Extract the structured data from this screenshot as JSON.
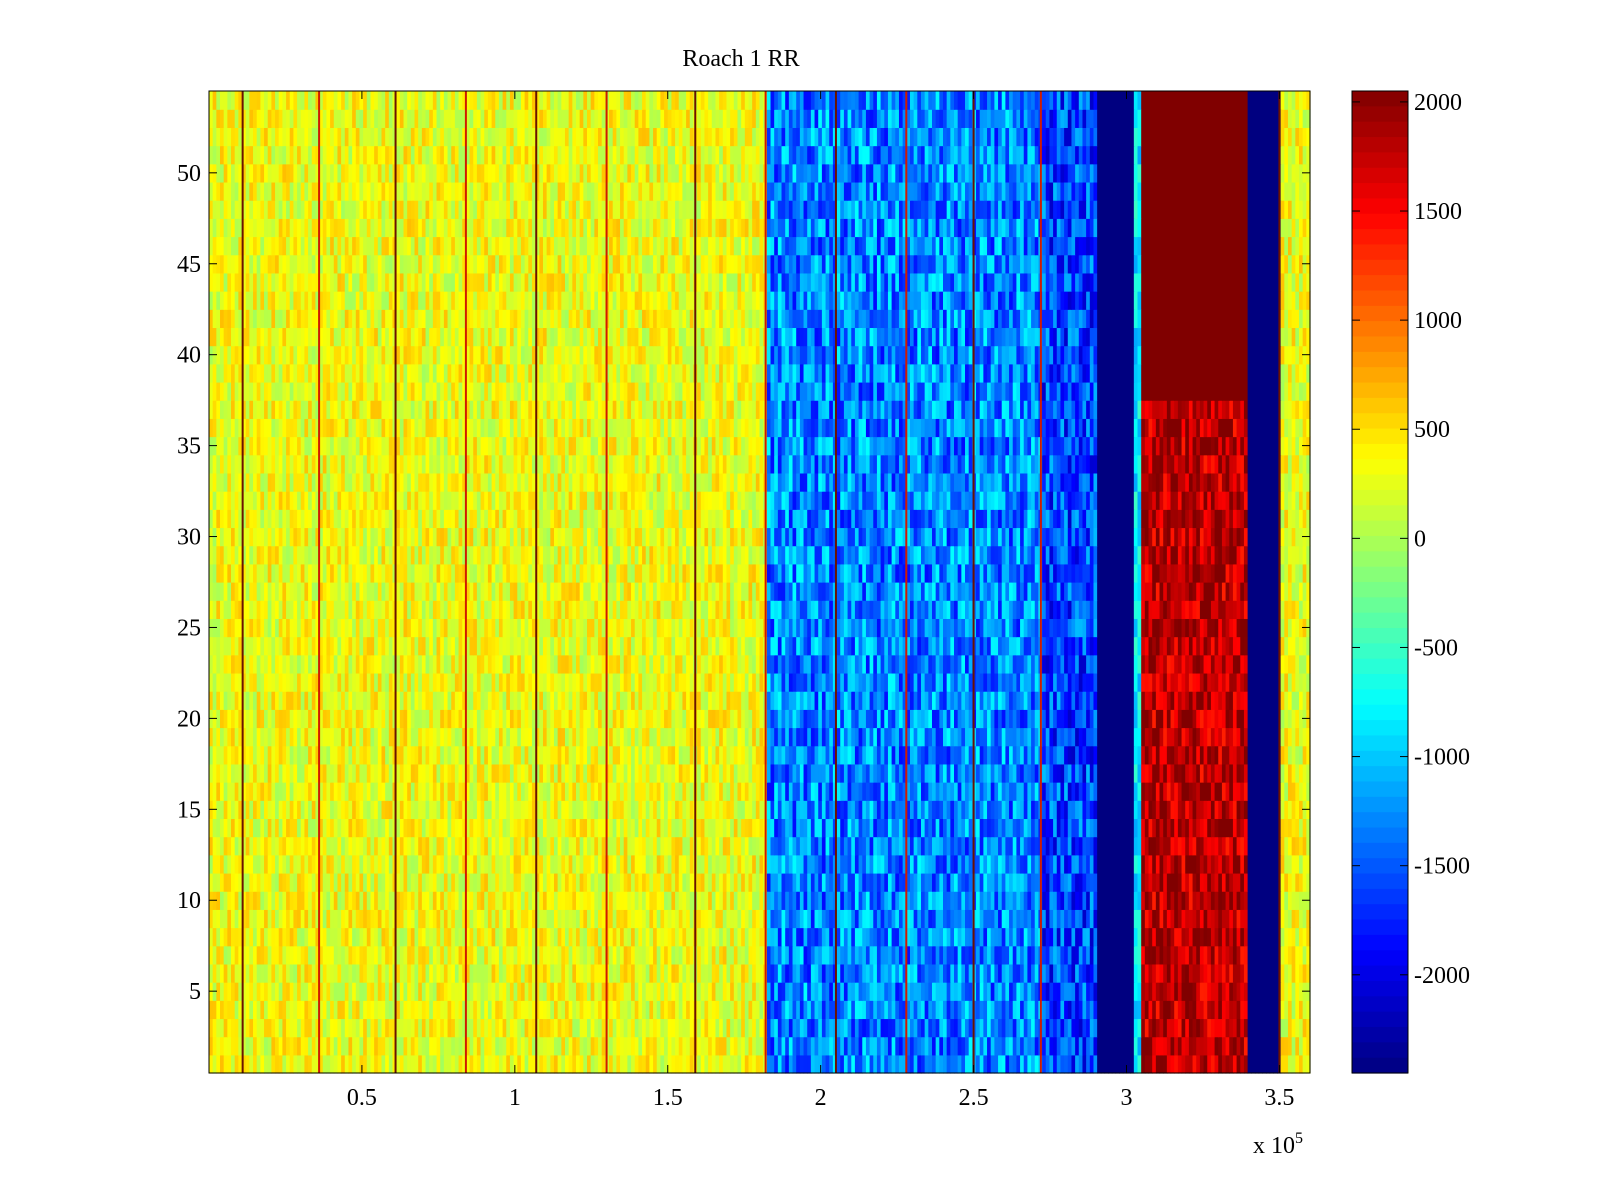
{
  "chart_data": {
    "type": "heatmap",
    "title": "Roach 1 RR",
    "xlabel": "",
    "ylabel": "",
    "x_multiplier_label": "x 10",
    "x_multiplier_exponent": "5",
    "xlim": [
      0,
      3.6
    ],
    "ylim": [
      0.5,
      54.5
    ],
    "x_ticks": [
      0.5,
      1,
      1.5,
      2,
      2.5,
      3,
      3.5
    ],
    "x_tick_labels": [
      "0.5",
      "1",
      "1.5",
      "2",
      "2.5",
      "3",
      "3.5"
    ],
    "y_ticks": [
      5,
      10,
      15,
      20,
      25,
      30,
      35,
      40,
      45,
      50
    ],
    "y_tick_labels": [
      "5",
      "10",
      "15",
      "20",
      "25",
      "30",
      "35",
      "40",
      "45",
      "50"
    ],
    "rows": 54,
    "colormap": "jet",
    "colorbar": {
      "range": [
        -2450,
        2050
      ],
      "ticks": [
        2000,
        1500,
        1000,
        500,
        0,
        -500,
        -1000,
        -1500,
        -2000
      ],
      "tick_labels": [
        "2000",
        "1500",
        "1000",
        "500",
        "0",
        "-500",
        "-1000",
        "-1500",
        "-2000"
      ]
    },
    "regions": [
      {
        "x": [
          0,
          1.82
        ],
        "value": 300,
        "label": "baseline (yellow/green)"
      },
      {
        "x": [
          1.82,
          2.72
        ],
        "value": -1300,
        "label": "mixed blue/cyan"
      },
      {
        "x": [
          2.72,
          2.9
        ],
        "value": -1600,
        "label": "blue"
      },
      {
        "x": [
          2.9,
          3.02
        ],
        "value": -2450,
        "label": "dark blue band"
      },
      {
        "x": [
          3.02,
          3.05
        ],
        "value": -800,
        "label": "cyan edge"
      },
      {
        "x": [
          3.05,
          3.4
        ],
        "value": 1800,
        "label": "dark red band (saturated rows 38-54)"
      },
      {
        "x": [
          3.4,
          3.51
        ],
        "value": -2450,
        "label": "dark blue band"
      },
      {
        "x": [
          3.51,
          3.6
        ],
        "value": 300,
        "label": "yellow edge"
      }
    ],
    "vertical_lines_x": [
      0.11,
      0.36,
      0.61,
      0.84,
      1.07,
      1.3,
      1.59,
      1.82,
      2.05,
      2.28,
      2.5,
      2.72,
      3.5
    ]
  },
  "colors": {
    "axis": "#000000",
    "background": "#ffffff",
    "line_dark": "#6b1200",
    "line_red": "#d01a00"
  }
}
